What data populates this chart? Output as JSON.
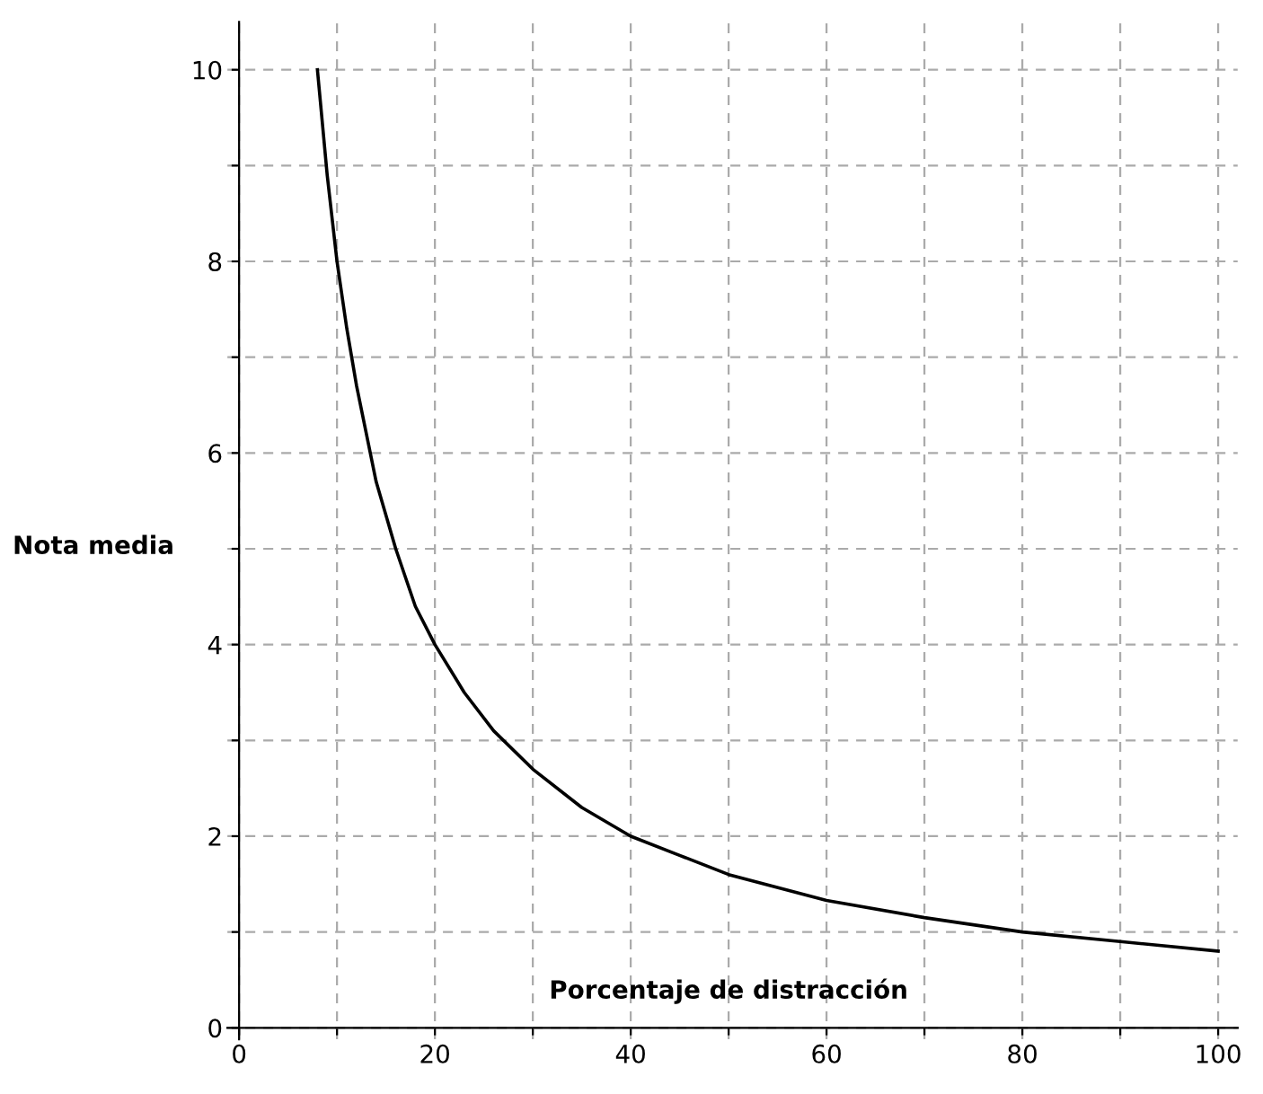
{
  "chart_data": {
    "type": "line",
    "xlabel": "Porcentaje de distracción",
    "ylabel": "Nota media",
    "x": [
      8,
      9,
      10,
      11,
      12,
      14,
      16,
      18,
      20,
      23,
      26,
      30,
      35,
      40,
      45,
      50,
      60,
      70,
      80,
      90,
      100
    ],
    "series": [
      {
        "color": "#000000",
        "values": [
          10,
          8.9,
          8,
          7.3,
          6.7,
          5.7,
          5,
          4.4,
          4,
          3.5,
          3.1,
          2.7,
          2.3,
          2,
          1.8,
          1.6,
          1.33,
          1.15,
          1,
          0.9,
          0.8
        ]
      }
    ],
    "xlim": [
      -1.2,
      102
    ],
    "ylim": [
      -0.12,
      10.5
    ],
    "xticks": [
      0,
      {
        "value": 10,
        "label": null
      },
      20,
      {
        "value": 30,
        "label": null
      },
      40,
      {
        "value": 50,
        "label": null
      },
      60,
      {
        "value": 70,
        "label": null
      },
      80,
      {
        "value": 90,
        "label": null
      },
      100
    ],
    "yticks": [
      0,
      {
        "value": 1,
        "label": null
      },
      2,
      {
        "value": 3,
        "label": null
      },
      4,
      {
        "value": 5,
        "label": null
      },
      6,
      {
        "value": 7,
        "label": null
      },
      8,
      {
        "value": 9,
        "label": null
      },
      10
    ],
    "grid": true,
    "marker": "none",
    "line_style": "solid"
  }
}
